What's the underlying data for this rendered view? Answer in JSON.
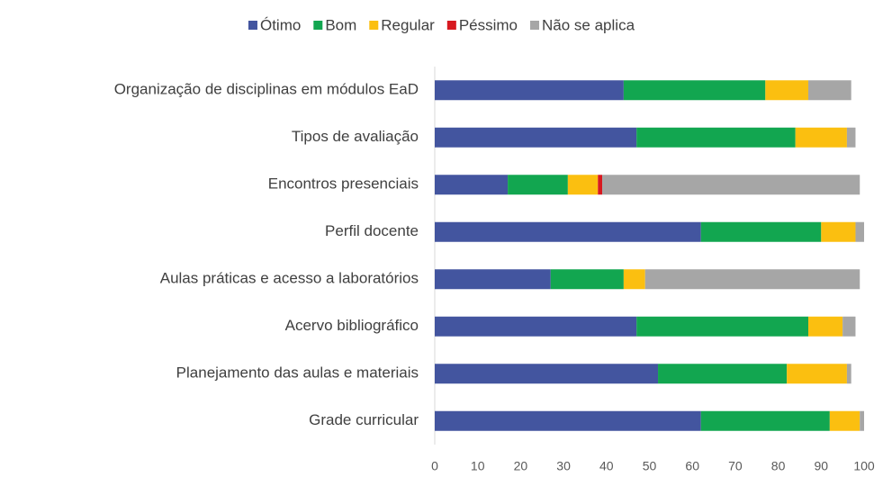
{
  "chart_data": {
    "type": "stacked_bar_horizontal",
    "categories": [
      "Organização de disciplinas em módulos EaD",
      "Tipos de avaliação",
      "Encontros presenciais",
      "Perfil docente",
      "Aulas práticas e acesso a laboratórios",
      "Acervo bibliográfico",
      "Planejamento das aulas e materiais",
      "Grade curricular"
    ],
    "series": [
      {
        "name": "Ótimo",
        "color": "#43559f",
        "values": [
          44,
          47,
          17,
          62,
          27,
          47,
          52,
          62
        ]
      },
      {
        "name": "Bom",
        "color": "#12a650",
        "values": [
          33,
          37,
          14,
          28,
          17,
          40,
          30,
          30
        ]
      },
      {
        "name": "Regular",
        "color": "#fbbf10",
        "values": [
          10,
          12,
          7,
          8,
          5,
          8,
          14,
          7
        ]
      },
      {
        "name": "Péssimo",
        "color": "#d71920",
        "values": [
          0,
          0,
          1,
          0,
          0,
          0,
          0,
          0
        ]
      },
      {
        "name": "Não se aplica",
        "color": "#a6a6a6",
        "values": [
          10,
          2,
          60,
          2,
          50,
          3,
          1,
          1
        ]
      }
    ],
    "xlim": [
      0,
      100
    ],
    "xticks": [
      0,
      10,
      20,
      30,
      40,
      50,
      60,
      70,
      80,
      90,
      100
    ],
    "legend": "top"
  }
}
